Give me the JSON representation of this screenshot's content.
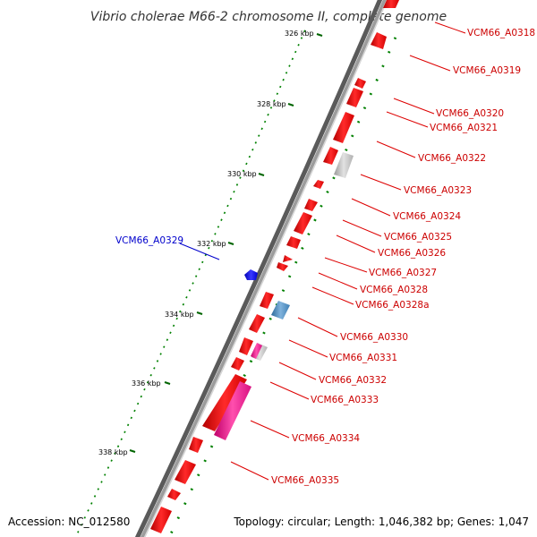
{
  "map": {
    "title": "Vibrio cholerae M66-2 chromosome II, complete genome",
    "accession_text": "Accession: NC_012580",
    "summary_text": "Topology: circular; Length: 1,046,382 bp; Genes: 1,047",
    "ruler": [
      {
        "label": "326 kbp",
        "kbp": 326
      },
      {
        "label": "328 kbp",
        "kbp": 328
      },
      {
        "label": "330 kbp",
        "kbp": 330
      },
      {
        "label": "332 kbp",
        "kbp": 332
      },
      {
        "label": "334 kbp",
        "kbp": 334
      },
      {
        "label": "336 kbp",
        "kbp": 336
      },
      {
        "label": "338 kbp",
        "kbp": 338
      }
    ],
    "genes": [
      {
        "name": "VCM66_A0318"
      },
      {
        "name": "VCM66_A0319"
      },
      {
        "name": "VCM66_A0320"
      },
      {
        "name": "VCM66_A0321"
      },
      {
        "name": "VCM66_A0322"
      },
      {
        "name": "VCM66_A0323"
      },
      {
        "name": "VCM66_A0324"
      },
      {
        "name": "VCM66_A0325"
      },
      {
        "name": "VCM66_A0326"
      },
      {
        "name": "VCM66_A0327"
      },
      {
        "name": "VCM66_A0328"
      },
      {
        "name": "VCM66_A0328a"
      },
      {
        "name": "VCM66_A0329"
      },
      {
        "name": "VCM66_A0330"
      },
      {
        "name": "VCM66_A0331"
      },
      {
        "name": "VCM66_A0332"
      },
      {
        "name": "VCM66_A0333"
      },
      {
        "name": "VCM66_A0334"
      },
      {
        "name": "VCM66_A0335"
      }
    ],
    "colors": {
      "forward_cds": "#ff0000",
      "reverse_cds": "#0000ff",
      "forward_label": "#cc0000",
      "reverse_label": "#0000cc",
      "misc_feature": "#bdbdbd",
      "pink_feature": "#ff3399",
      "blue_feature": "#4682b4",
      "backbone": "#8a8a8a",
      "gc_skew_ticks": "#008000"
    }
  }
}
